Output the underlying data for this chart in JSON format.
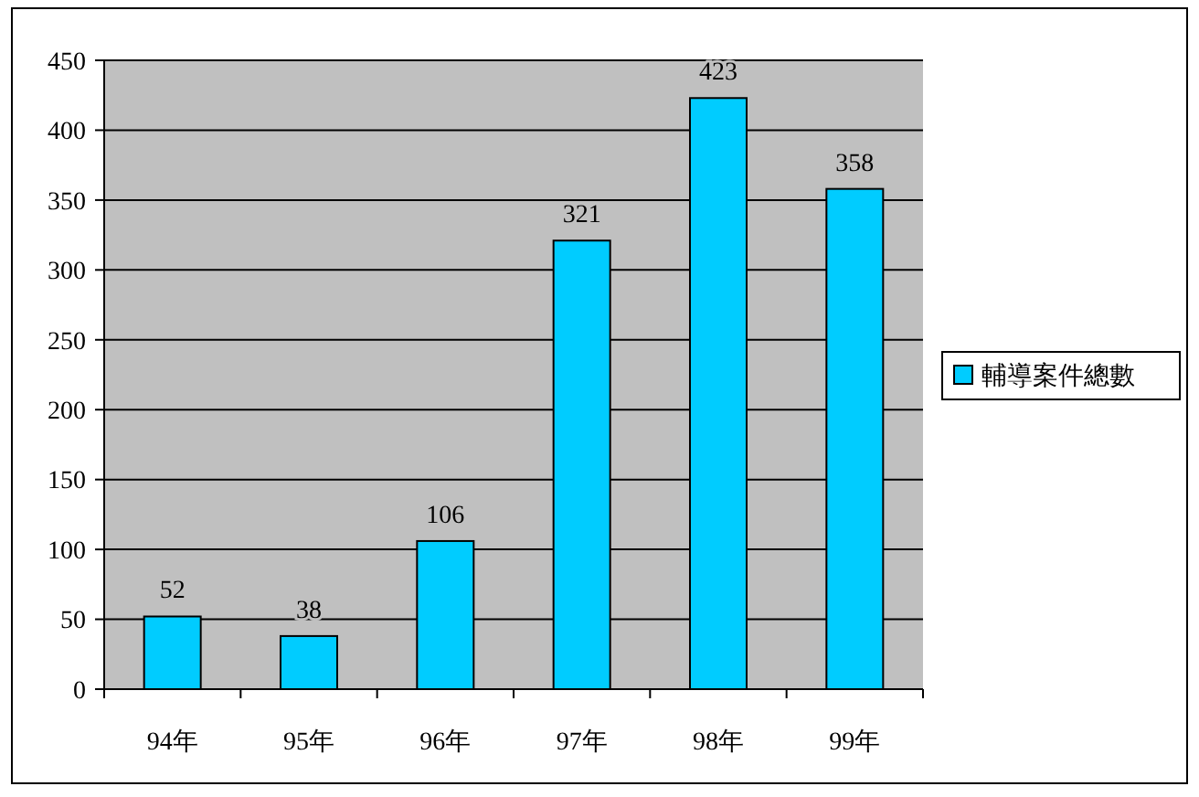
{
  "chart_data": {
    "type": "bar",
    "categories": [
      "94年",
      "95年",
      "96年",
      "97年",
      "98年",
      "99年"
    ],
    "series": [
      {
        "name": "輔導案件總數",
        "color": "#00ccff",
        "values": [
          52,
          38,
          106,
          321,
          423,
          358
        ]
      }
    ],
    "ylim": [
      0,
      450
    ],
    "yticks": [
      0,
      50,
      100,
      150,
      200,
      250,
      300,
      350,
      400,
      450
    ],
    "grid": "y",
    "legend": "right",
    "data_labels": true
  }
}
